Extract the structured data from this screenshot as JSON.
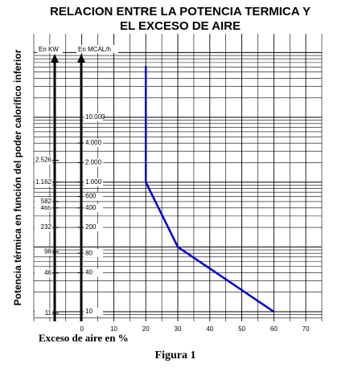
{
  "chart_data": {
    "type": "line",
    "title": "RELACION ENTRE LA POTENCIA TERMICA Y",
    "subtitle": "EL EXCESO DE AIRE",
    "xlabel": "Exceso de aire en %",
    "ylabel": "Potencia térmica en función del poder calorífico inferior",
    "y_unit": "En MCAL/h",
    "y2_unit": "En KW",
    "caption": "Figura 1",
    "log_y": true,
    "grid": true,
    "xlim": [
      -15,
      75
    ],
    "xticks": [
      0,
      10,
      20,
      30,
      40,
      50,
      60,
      70
    ],
    "ylim": [
      7.1,
      195000
    ],
    "yticks": [
      10,
      40,
      80,
      200,
      400,
      600,
      {
        "value": 1000,
        "label": "1.000"
      },
      {
        "value": 2000,
        "label": "2.000"
      },
      {
        "value": 4000,
        "label": "4.000"
      },
      {
        "value": 10000,
        "label": "10.000"
      }
    ],
    "y2lim": [
      8.25,
      226600
    ],
    "y2ticks": [
      11,
      46,
      98,
      232,
      465,
      582,
      {
        "value": 1162,
        "label": "1.162"
      },
      {
        "value": 2526,
        "label": "2.526"
      }
    ],
    "series": [
      {
        "color": "#0000cc",
        "x": [
          20,
          20,
          30,
          60
        ],
        "values": [
          62000,
          1000,
          100,
          10
        ]
      }
    ]
  }
}
